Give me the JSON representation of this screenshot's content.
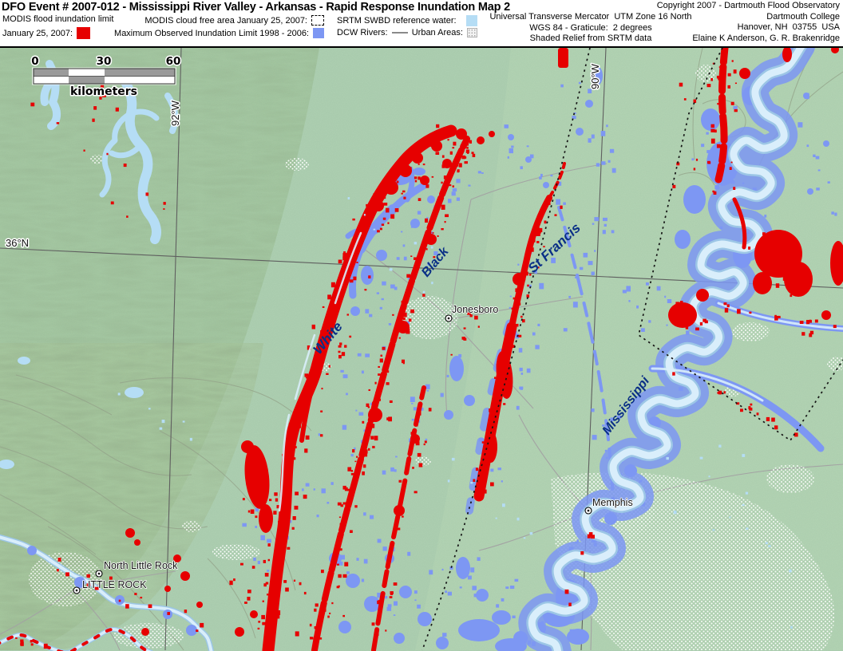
{
  "header": {
    "title": "DFO Event # 2007-012 - Mississippi River Valley - Arkansas - Rapid Response Inundation Map 2",
    "legend": {
      "modis_flood_line1": "MODIS flood inundation limit",
      "modis_flood_line2": "January 25, 2007:",
      "cloud_free": "MODIS cloud free area January 25, 2007:",
      "max_inundation": "Maximum Observed Inundation Limit 1998 - 2006:",
      "srtm_water": "SRTM SWBD reference water:",
      "dcw_rivers": "DCW Rivers:",
      "urban_areas": "Urban Areas:"
    },
    "projection": [
      "Universal Transverse Mercator  UTM Zone 16 North",
      "WGS 84 - Graticule:  2 degrees",
      "Shaded Relief from SRTM data"
    ],
    "credits": [
      "Copyright 2007 - Dartmouth Flood Observatory",
      "Dartmouth College",
      "Hanover, NH  03755  USA",
      "Elaine K Anderson, G. R. Brakenridge"
    ]
  },
  "scalebar": {
    "ticks": [
      "0",
      "30",
      "60"
    ],
    "unit": "kilometers"
  },
  "map_labels": {
    "lat": "36°N",
    "lon_west": "92°W",
    "lon_east": "90°W",
    "river_white": "White",
    "river_black": "Black",
    "river_st_francis": "St Francis",
    "river_mississippi": "Mississippi",
    "city_jonesboro": "Jonesboro",
    "city_memphis": "Memphis",
    "city_north_little_rock": "North Little Rock",
    "city_little_rock": "LITTLE ROCK"
  },
  "colors": {
    "flood_red": "#e60000",
    "max_inundation_blue": "#7d97f3",
    "reference_water": "#b5ddf5",
    "river_channel": "#d9eefb",
    "terrain_green": "#aed0b2",
    "hills_green": "#a5c8a0",
    "river_label_navy": "#0a2f86",
    "urban_stipple": "#ffffff"
  }
}
